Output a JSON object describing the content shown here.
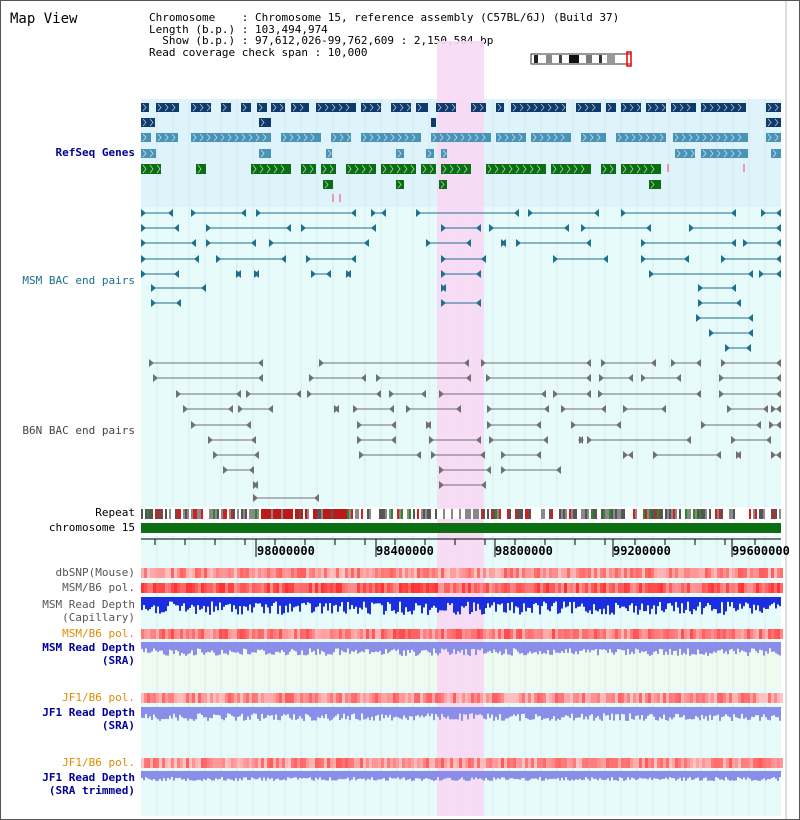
{
  "header": {
    "title": "Map View",
    "chromosome_line": "Chromosome    : Chromosome 15, reference assembly (C57BL/6J) (Build 37)",
    "length_line": "Length (b.p.) : 103,494,974",
    "show_line": "  Show (b.p.) : 97,612,026-99,762,609 : 2,150,584 bp",
    "span_line": "Read coverage check span : 10,000"
  },
  "tracks": {
    "refseq": "RefSeq Genes",
    "msm_bac": "MSM BAC end pairs",
    "b6n_bac": "B6N BAC end pairs",
    "repeat": "Repeat",
    "chromosome": "chromosome 15",
    "dbsnp": "dbSNP(Mouse)",
    "msm_b6_pol_1": "MSM/B6 pol.",
    "msm_read_depth_cap_1": "MSM Read Depth",
    "msm_read_depth_cap_2": "(Capillary)",
    "msm_b6_pol_2": "MSM/B6 pol.",
    "msm_read_depth_sra_1": "MSM Read Depth",
    "msm_read_depth_sra_2": "(SRA)",
    "jf1_b6_pol_1": "JF1/B6 pol.",
    "jf1_read_depth_sra_1": "JF1 Read Depth",
    "jf1_read_depth_sra_2": "(SRA)",
    "jf1_b6_pol_2": "JF1/B6 pol.",
    "jf1_read_depth_trim_1": "JF1 Read Depth",
    "jf1_read_depth_trim_2": "(SRA trimmed)"
  },
  "ruler": {
    "ticks": [
      "98000000",
      "98400000",
      "98800000",
      "99200000",
      "99600000"
    ]
  },
  "colors": {
    "refseq_bg": "#dff3fb",
    "track_bg": "#e8fbfb",
    "highlight": "#f8d8f4",
    "dark_blue": "#0f3a6c",
    "teal_blue": "#4a93b8",
    "green": "#0a6e12",
    "msm_pair": "#1f6f8f",
    "b6n_pair": "#707070",
    "chrom_bar": "#0a6e12",
    "snp_red": "#e64a4a",
    "depth_blue": "#1a2ee0",
    "sra_depth": "#8a8ee8",
    "label_blue": "#000099",
    "label_teal": "#1a6f8f",
    "label_orange": "#e08a00"
  }
}
